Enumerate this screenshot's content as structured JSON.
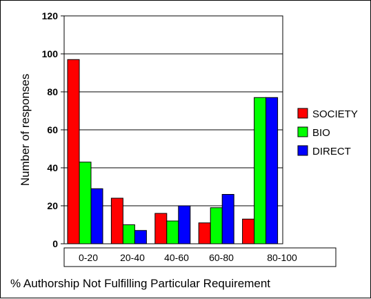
{
  "chart_data": {
    "type": "bar",
    "categories": [
      "0-20",
      "20-40",
      "40-60",
      "60-80",
      "80-100"
    ],
    "series": [
      {
        "name": "SOCIETY",
        "color": "#ff0000",
        "values": [
          97,
          24,
          16,
          11,
          13
        ]
      },
      {
        "name": "BIO",
        "color": "#00ff00",
        "values": [
          43,
          10,
          12,
          19,
          77
        ]
      },
      {
        "name": "DIRECT",
        "color": "#0000ff",
        "values": [
          29,
          7,
          20,
          26,
          77
        ]
      }
    ],
    "title": "",
    "xlabel": "% Authorship Not Fulfilling Particular Requirement",
    "ylabel": "Number of responses",
    "ylim": [
      0,
      120
    ],
    "yticks": [
      0,
      20,
      40,
      60,
      80,
      100,
      120
    ],
    "grid": true,
    "legend_position": "right"
  }
}
